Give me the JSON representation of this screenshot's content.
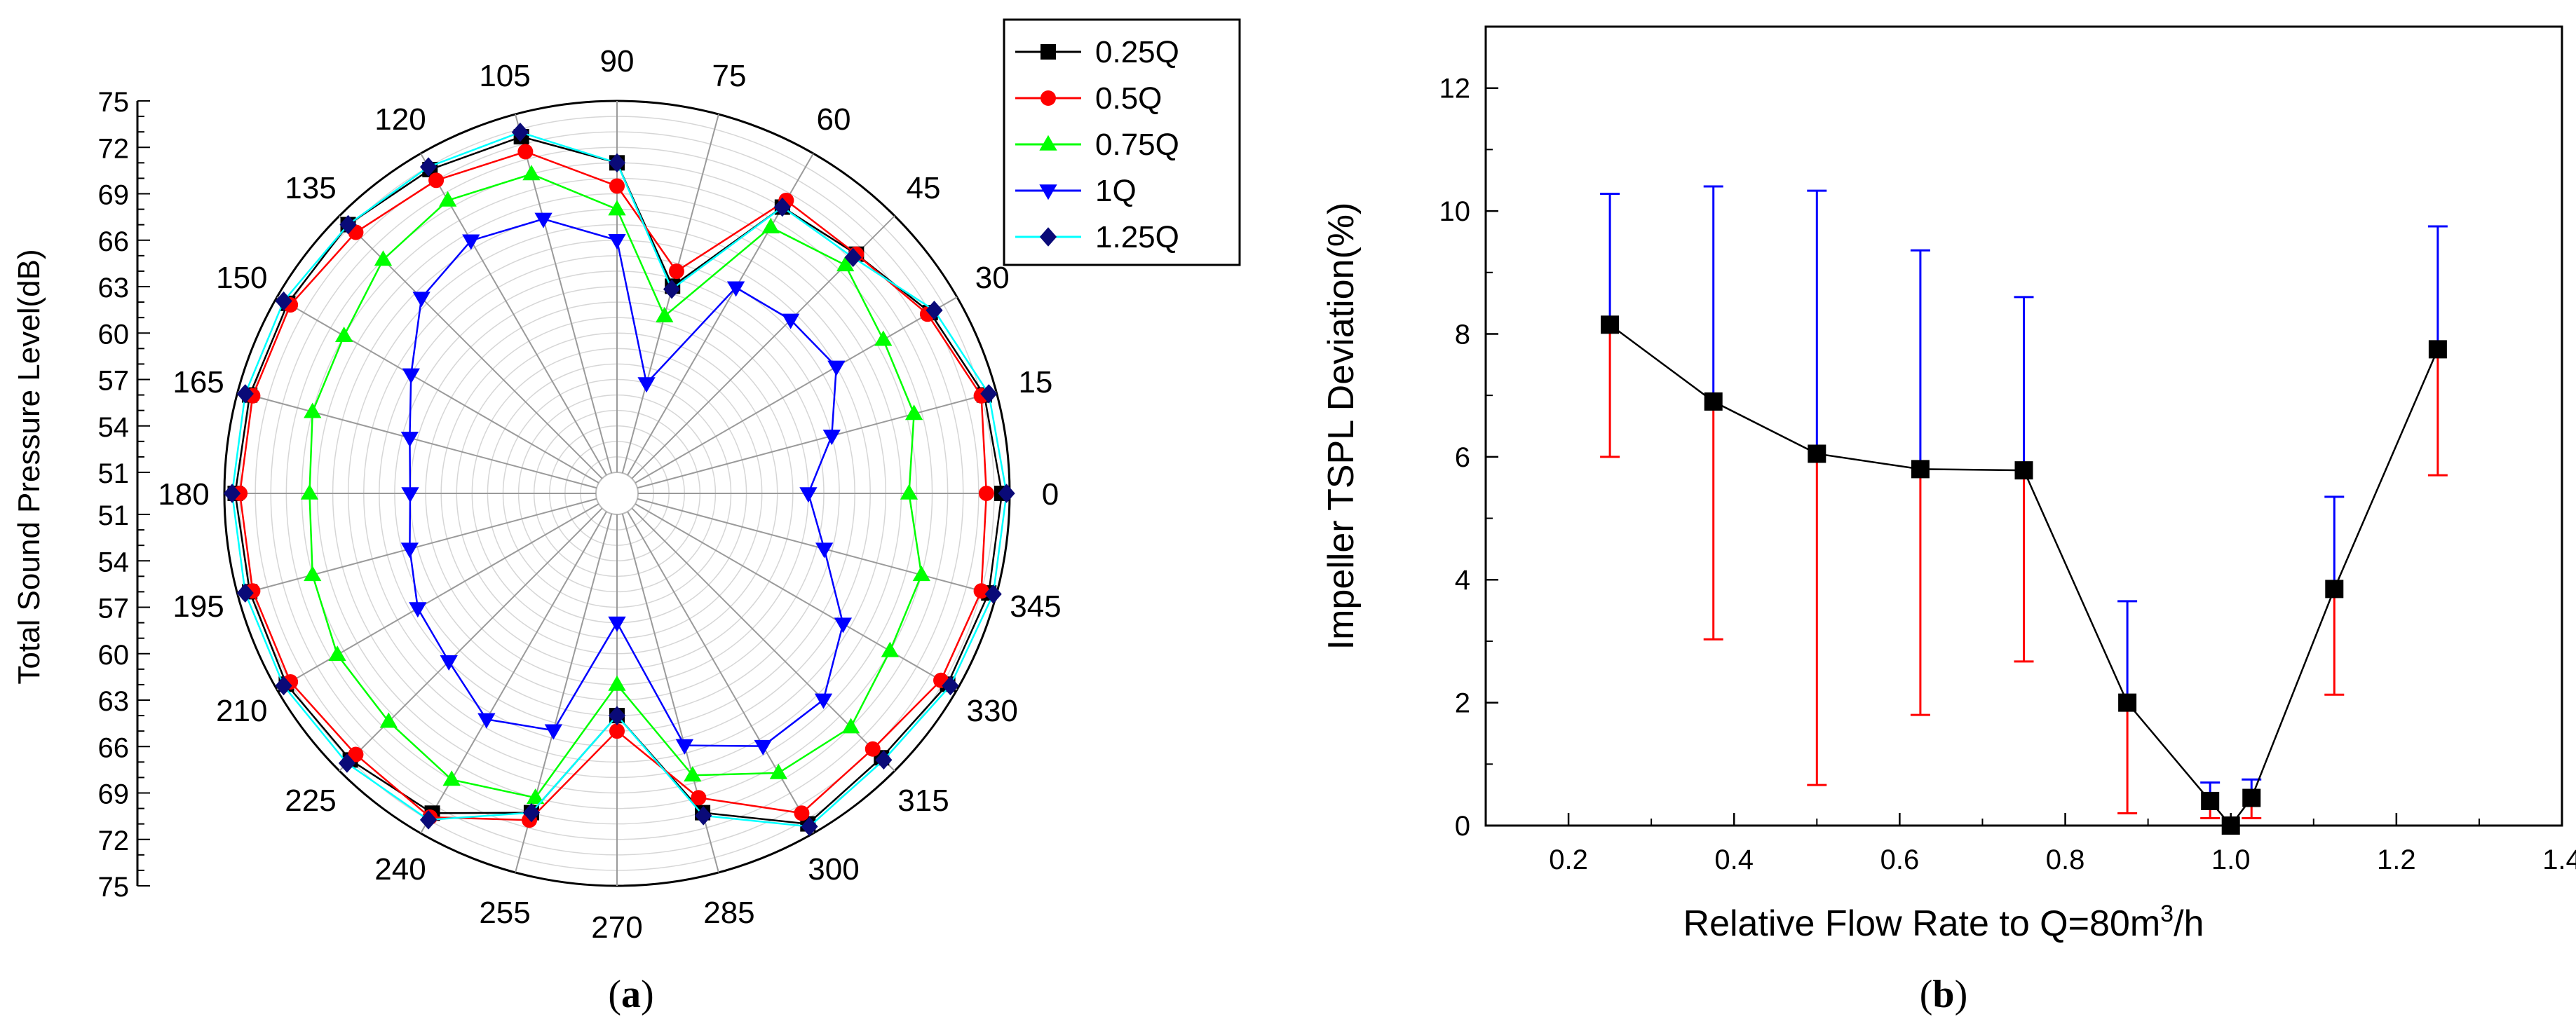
{
  "figure": {
    "panels": [
      {
        "label_open": "(",
        "label_letter": "a",
        "label_close": ")"
      },
      {
        "label_open": "(",
        "label_letter": "b",
        "label_close": ")"
      }
    ]
  },
  "chart_data": [
    {
      "type": "polar-line",
      "ylabel": "Total Sound Pressure Level(dB)",
      "radial_range": [
        51,
        75
      ],
      "radial_ticks": [
        51,
        54,
        57,
        60,
        63,
        66,
        69,
        72,
        75
      ],
      "angles": [
        0,
        15,
        30,
        45,
        60,
        75,
        90,
        105,
        120,
        135,
        150,
        165,
        180,
        195,
        210,
        225,
        240,
        255,
        270,
        285,
        300,
        315,
        330,
        345
      ],
      "angle_labels": [
        "0",
        "15",
        "30",
        "45",
        "60",
        "75",
        "90",
        "105",
        "120",
        "135",
        "150",
        "165",
        "180",
        "195",
        "210",
        "225",
        "240",
        "255",
        "270",
        "285",
        "300",
        "315",
        "330",
        "345"
      ],
      "series": [
        {
          "name": "0.25Q",
          "color": "#000000",
          "marker": "square",
          "values": [
            74.5,
            74.2,
            73.0,
            71.5,
            71.0,
            63.5,
            71.0,
            73.5,
            73.8,
            74.2,
            74.2,
            74.2,
            74.3,
            74.2,
            74.3,
            74.0,
            73.5,
            71.0,
            64.0,
            71.0,
            74.3,
            73.8,
            74.3,
            74.5
          ]
        },
        {
          "name": "0.5Q",
          "color": "#ff0000",
          "marker": "circle",
          "values": [
            73.5,
            74.0,
            72.8,
            71.5,
            71.5,
            64.5,
            69.5,
            72.5,
            73.0,
            73.5,
            74.0,
            74.0,
            74.0,
            74.0,
            74.0,
            73.5,
            73.8,
            71.5,
            65.0,
            70.0,
            73.5,
            73.0,
            73.8,
            74.0
          ]
        },
        {
          "name": "0.75Q",
          "color": "#00ff00",
          "marker": "triangle-up",
          "values": [
            68.5,
            69.5,
            69.5,
            70.5,
            69.5,
            61.5,
            68.0,
            71.0,
            71.5,
            71.0,
            70.0,
            70.0,
            69.5,
            70.0,
            70.5,
            70.5,
            71.0,
            70.0,
            62.0,
            68.5,
            70.5,
            71.0,
            70.0,
            70.0
          ]
        },
        {
          "name": "1Q",
          "color": "#0000ff",
          "marker": "triangle-down",
          "values": [
            62.0,
            64.0,
            66.0,
            65.5,
            65.0,
            57.0,
            66.0,
            68.0,
            68.5,
            67.5,
            65.0,
            63.5,
            63.0,
            63.5,
            64.5,
            65.0,
            66.5,
            65.5,
            58.0,
            66.5,
            68.5,
            68.5,
            66.5,
            63.5
          ]
        },
        {
          "name": "1.25Q",
          "color": "#00ffff",
          "marker": "diamond",
          "values": [
            74.8,
            74.5,
            73.3,
            71.2,
            71.0,
            63.3,
            71.0,
            73.8,
            74.0,
            74.2,
            74.5,
            74.5,
            74.5,
            74.5,
            74.5,
            74.3,
            74.0,
            71.0,
            64.0,
            71.2,
            74.5,
            74.0,
            74.5,
            74.8
          ]
        }
      ]
    },
    {
      "type": "line",
      "xlabel": "Relative Flow Rate to Q=80m",
      "xlabel_sup": "3",
      "xlabel_tail": "/h",
      "ylabel": "Impeller TSPL Deviation(%)",
      "xlim": [
        0.1,
        1.4
      ],
      "ylim": [
        0,
        13
      ],
      "xticks": [
        0.2,
        0.4,
        0.6,
        0.8,
        1.0,
        1.2,
        1.4
      ],
      "xtick_labels": [
        "0.2",
        "0.4",
        "0.6",
        "0.8",
        "1.0",
        "1.2",
        "1.4"
      ],
      "yticks": [
        0,
        2,
        4,
        6,
        8,
        10,
        12
      ],
      "ytick_labels": [
        "0",
        "2",
        "4",
        "6",
        "8",
        "10",
        "12"
      ],
      "colors": {
        "line": "#000000",
        "upper": "#0000ff",
        "lower": "#ff0000"
      },
      "x": [
        0.25,
        0.375,
        0.5,
        0.625,
        0.75,
        0.875,
        0.975,
        1.0,
        1.025,
        1.125,
        1.25
      ],
      "y": [
        8.15,
        6.9,
        6.05,
        5.8,
        5.78,
        2.0,
        0.4,
        0.0,
        0.45,
        3.85,
        7.75
      ],
      "y_upper": [
        10.28,
        10.4,
        10.33,
        9.36,
        8.6,
        3.65,
        0.7,
        null,
        0.75,
        5.35,
        9.75
      ],
      "y_lower": [
        6.0,
        3.03,
        0.66,
        1.8,
        2.67,
        0.2,
        0.12,
        null,
        0.12,
        2.13,
        5.7
      ]
    }
  ]
}
